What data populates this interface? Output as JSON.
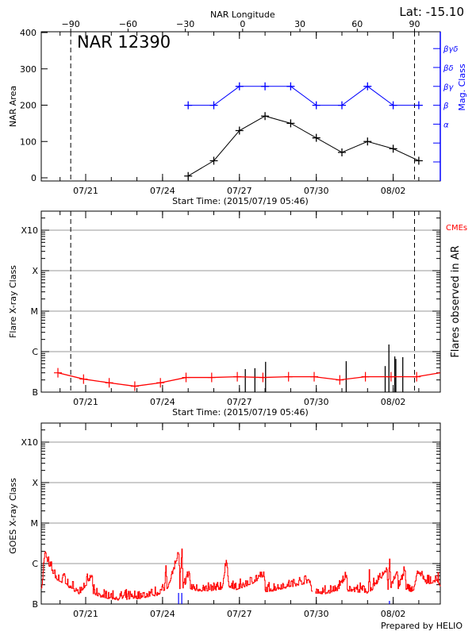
{
  "header": {
    "lat_label": "Lat: -15.10",
    "prepared_by": "Prepared by HELIO"
  },
  "colors": {
    "axis": "#000000",
    "mag_class": "#0000ff",
    "flare_fit": "#ff0000",
    "goes": "#ff0000",
    "cme": "#0000ff",
    "grid": "#999999"
  },
  "chart_data": [
    {
      "type": "line",
      "title": "NAR 12390",
      "xlabel": "Start Time: (2015/07/19 05:46)",
      "x2label": "NAR Longitude",
      "ylabel": "NAR Area",
      "y2label": "Mag. Class",
      "xlim": [
        "2015-07-19 05:46",
        "2015-08-03 20:00"
      ],
      "x_ticks": [
        [
          "2015-07-21 00:00",
          "07/21"
        ],
        [
          "2015-07-24 00:00",
          "07/24"
        ],
        [
          "2015-07-27 00:00",
          "07/27"
        ],
        [
          "2015-07-30 00:00",
          "07/30"
        ],
        [
          "2015-08-02 00:00",
          "08/02"
        ]
      ],
      "lon_ticks": [
        -90,
        -60,
        -30,
        0,
        30,
        60,
        90
      ],
      "ylim": [
        0,
        400
      ],
      "y_ticks": [
        0,
        100,
        200,
        300,
        400
      ],
      "mag_levels": [
        "α",
        "β",
        "βγ",
        "βδ",
        "βγδ"
      ],
      "limb_lines": [
        "2015-07-20 10:00",
        "2015-08-02 20:00"
      ],
      "dates": [
        "2015-07-25 00:00",
        "2015-07-26 00:00",
        "2015-07-27 00:00",
        "2015-07-28 00:00",
        "2015-07-29 00:00",
        "2015-07-30 00:00",
        "2015-07-31 00:00",
        "2015-08-01 00:00",
        "2015-08-02 00:00",
        "2015-08-03 00:00"
      ],
      "area": [
        5,
        47,
        130,
        170,
        150,
        110,
        70,
        100,
        80,
        47
      ],
      "mag_class": [
        "β",
        "β",
        "βγ",
        "βγ",
        "βγ",
        "β",
        "β",
        "βγ",
        "β",
        "β"
      ]
    },
    {
      "type": "line",
      "xlabel": "Start Time: (2015/07/19 05:46)",
      "ylabel": "Flare X-ray Class",
      "y2label": "Flares observed in AR",
      "legend": "CMEs",
      "yscale": "log",
      "ylim": [
        1e-07,
        0.003
      ],
      "y_levels": [
        [
          1e-07,
          "B"
        ],
        [
          1e-06,
          "C"
        ],
        [
          1e-05,
          "M"
        ],
        [
          0.0001,
          "X"
        ],
        [
          0.001,
          "X10"
        ]
      ],
      "grid": true,
      "fit_dates": [
        "2015-07-19 22:00",
        "2015-07-20 22:00",
        "2015-07-21 22:00",
        "2015-07-22 22:00",
        "2015-07-23 22:00",
        "2015-07-24 22:00",
        "2015-07-25 22:00",
        "2015-07-26 22:00",
        "2015-07-27 22:00",
        "2015-07-28 22:00",
        "2015-07-29 22:00",
        "2015-07-30 22:00",
        "2015-07-31 22:00",
        "2015-08-01 22:00",
        "2015-08-02 22:00",
        "2015-08-03 20:00"
      ],
      "fit_flux": [
        3e-07,
        2.1e-07,
        1.7e-07,
        1.4e-07,
        1.7e-07,
        2.3e-07,
        2.3e-07,
        2.4e-07,
        2.3e-07,
        2.4e-07,
        2.4e-07,
        2e-07,
        2.4e-07,
        2.4e-07,
        2.4e-07,
        3e-07
      ],
      "flares": [
        [
          "2015-07-27 05:30",
          3.7e-07
        ],
        [
          "2015-07-27 14:30",
          3.9e-07
        ],
        [
          "2015-07-28 00:30",
          5.6e-07
        ],
        [
          "2015-07-31 04:00",
          5.8e-07
        ],
        [
          "2015-08-01 16:30",
          4.4e-07
        ],
        [
          "2015-08-01 20:00",
          1.5e-06
        ],
        [
          "2015-08-02 01:30",
          7.6e-07
        ],
        [
          "2015-08-02 02:30",
          6.6e-07
        ],
        [
          "2015-08-02 09:00",
          7.3e-07
        ]
      ]
    },
    {
      "type": "line",
      "ylabel": "GOES X-ray Class",
      "yscale": "log",
      "ylim": [
        1e-07,
        0.003
      ],
      "y_levels": [
        [
          1e-07,
          "B"
        ],
        [
          1e-06,
          "C"
        ],
        [
          1e-05,
          "M"
        ],
        [
          0.0001,
          "X"
        ],
        [
          0.001,
          "X10"
        ]
      ],
      "grid": true,
      "goes": [
        [
          "2015-07-19 06:00",
          2.5e-07
        ],
        [
          "2015-07-19 07:00",
          3e-07
        ],
        [
          "2015-07-19 08:00",
          6.3e-07
        ],
        [
          "2015-07-19 09:30",
          1.8e-06
        ],
        [
          "2015-07-19 14:00",
          8.5e-07
        ],
        [
          "2015-07-19 20:30",
          4.3e-07
        ],
        [
          "2015-07-20 01:30",
          3.4e-07
        ],
        [
          "2015-07-20 04:00",
          5.5e-07
        ],
        [
          "2015-07-20 05:00",
          3.2e-07
        ],
        [
          "2015-07-20 10:30",
          2.5e-07
        ],
        [
          "2015-07-20 18:00",
          1.9e-07
        ],
        [
          "2015-07-21 06:00",
          4.8e-07
        ],
        [
          "2015-07-21 07:00",
          1.8e-07
        ],
        [
          "2015-07-21 13:30",
          1.6e-07
        ],
        [
          "2015-07-22 07:00",
          1.35e-07
        ],
        [
          "2015-07-23 05:00",
          1.5e-07
        ],
        [
          "2015-07-23 18:00",
          1.75e-07
        ],
        [
          "2015-07-24 01:30",
          2.2e-07
        ],
        [
          "2015-07-24 03:00",
          8.9e-07
        ],
        [
          "2015-07-24 04:00",
          2.4e-07
        ],
        [
          "2015-07-24 15:00",
          1.7e-06
        ],
        [
          "2015-07-24 16:00",
          2.4e-07
        ],
        [
          "2015-07-24 18:00",
          2.3e-06
        ],
        [
          "2015-07-24 19:00",
          2.5e-07
        ],
        [
          "2015-07-25 01:00",
          5.8e-07
        ],
        [
          "2015-07-25 02:00",
          2.4e-07
        ],
        [
          "2015-07-25 14:30",
          2.2e-07
        ],
        [
          "2015-07-26 07:30",
          2.5e-07
        ],
        [
          "2015-07-26 12:00",
          1.03e-06
        ],
        [
          "2015-07-26 14:00",
          2.8e-07
        ],
        [
          "2015-07-26 22:30",
          2.4e-07
        ],
        [
          "2015-07-27 23:00",
          4.8e-07
        ],
        [
          "2015-07-28 00:00",
          2.2e-07
        ],
        [
          "2015-07-28 04:30",
          2.2e-07
        ],
        [
          "2015-07-29 18:00",
          3.7e-07
        ],
        [
          "2015-07-29 20:00",
          2e-07
        ],
        [
          null,
          null
        ],
        [
          "2015-07-29 23:00",
          2e-07
        ],
        [
          "2015-07-30 09:00",
          1.9e-07
        ],
        [
          "2015-07-30 21:00",
          2.4e-07
        ],
        [
          "2015-07-31 04:00",
          5.1e-07
        ],
        [
          "2015-07-31 05:00",
          2.3e-07
        ],
        [
          "2015-08-01 00:15",
          2e-07
        ],
        [
          "2015-08-01 01:30",
          7.1e-07
        ],
        [
          "2015-08-01 02:30",
          2.1e-07
        ],
        [
          "2015-08-01 18:00",
          7.1e-07
        ],
        [
          "2015-08-01 19:00",
          2.3e-07
        ],
        [
          "2015-08-01 20:30",
          1.3e-06
        ],
        [
          "2015-08-01 21:30",
          2.6e-07
        ],
        [
          "2015-08-02 03:30",
          6.3e-07
        ],
        [
          "2015-08-02 04:30",
          2.4e-07
        ],
        [
          "2015-08-02 11:00",
          6.5e-07
        ],
        [
          "2015-08-02 12:00",
          2.3e-07
        ],
        [
          "2015-08-02 18:30",
          2.2e-07
        ],
        [
          "2015-08-02 23:30",
          6.3e-07
        ],
        [
          "2015-08-03 07:00",
          3.2e-07
        ],
        [
          "2015-08-03 17:00",
          4e-07
        ],
        [
          "2015-08-03 20:00",
          2.7e-07
        ]
      ],
      "cmes": [
        "2015-07-24 15:00",
        "2015-07-24 18:00",
        "2015-08-01 20:30"
      ]
    }
  ]
}
